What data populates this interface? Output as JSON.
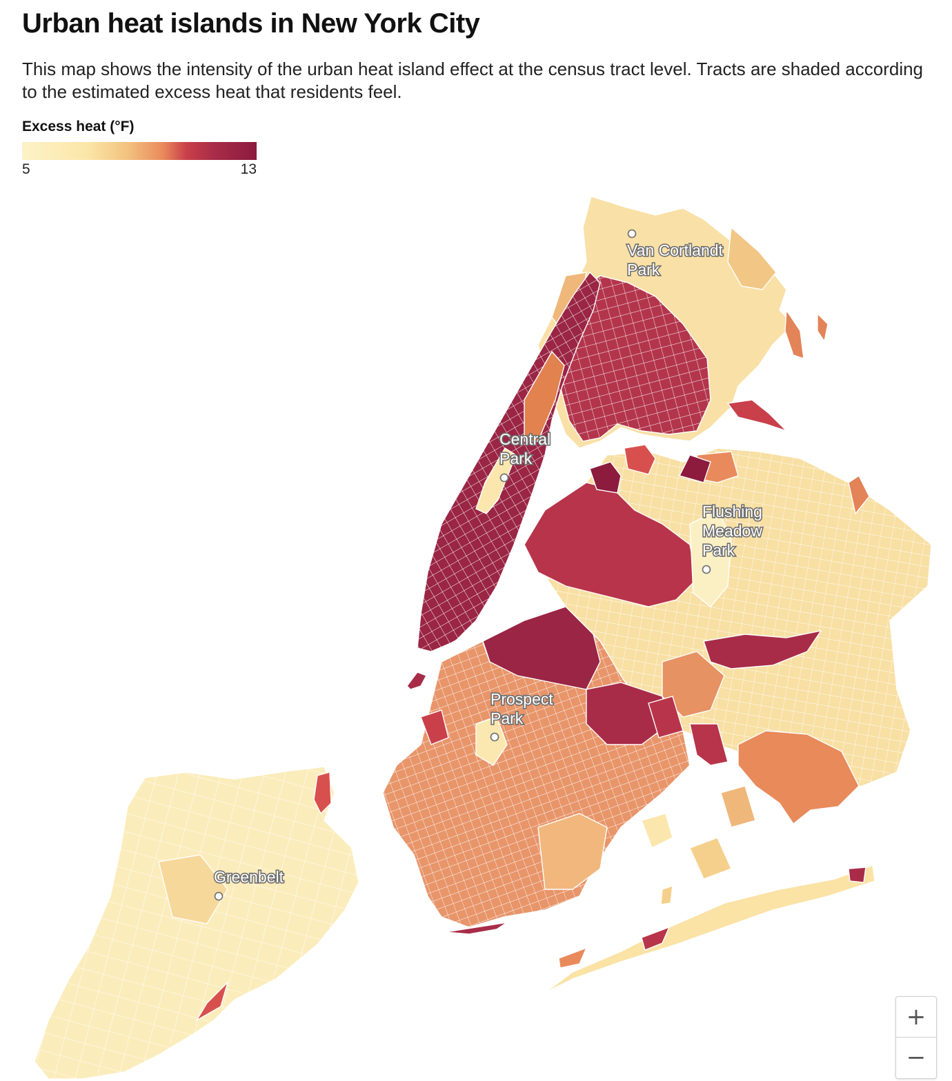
{
  "header": {
    "title": "Urban heat islands in New York City",
    "subtitle": "This map shows the intensity of the urban heat island effect at the census tract level. Tracts are shaded according to the estimated excess heat that residents feel."
  },
  "legend": {
    "title": "Excess heat (°F)",
    "min": "5",
    "max": "13",
    "colors": [
      "#fdf3c8",
      "#fbe6a8",
      "#f3c27e",
      "#e98a5c",
      "#c9404a",
      "#a82c48",
      "#8c1b3e"
    ]
  },
  "map": {
    "labels": {
      "van_cortlandt_line1": "Van Cortlandt",
      "van_cortlandt_line2": "Park",
      "central_line1": "Central",
      "central_line2": "Park",
      "flushing_line1": "Flushing",
      "flushing_line2": "Meadow",
      "flushing_line3": "Park",
      "prospect_line1": "Prospect",
      "prospect_line2": "Park",
      "greenbelt": "Greenbelt"
    }
  },
  "zoom": {
    "in_label": "+",
    "out_label": "−"
  }
}
